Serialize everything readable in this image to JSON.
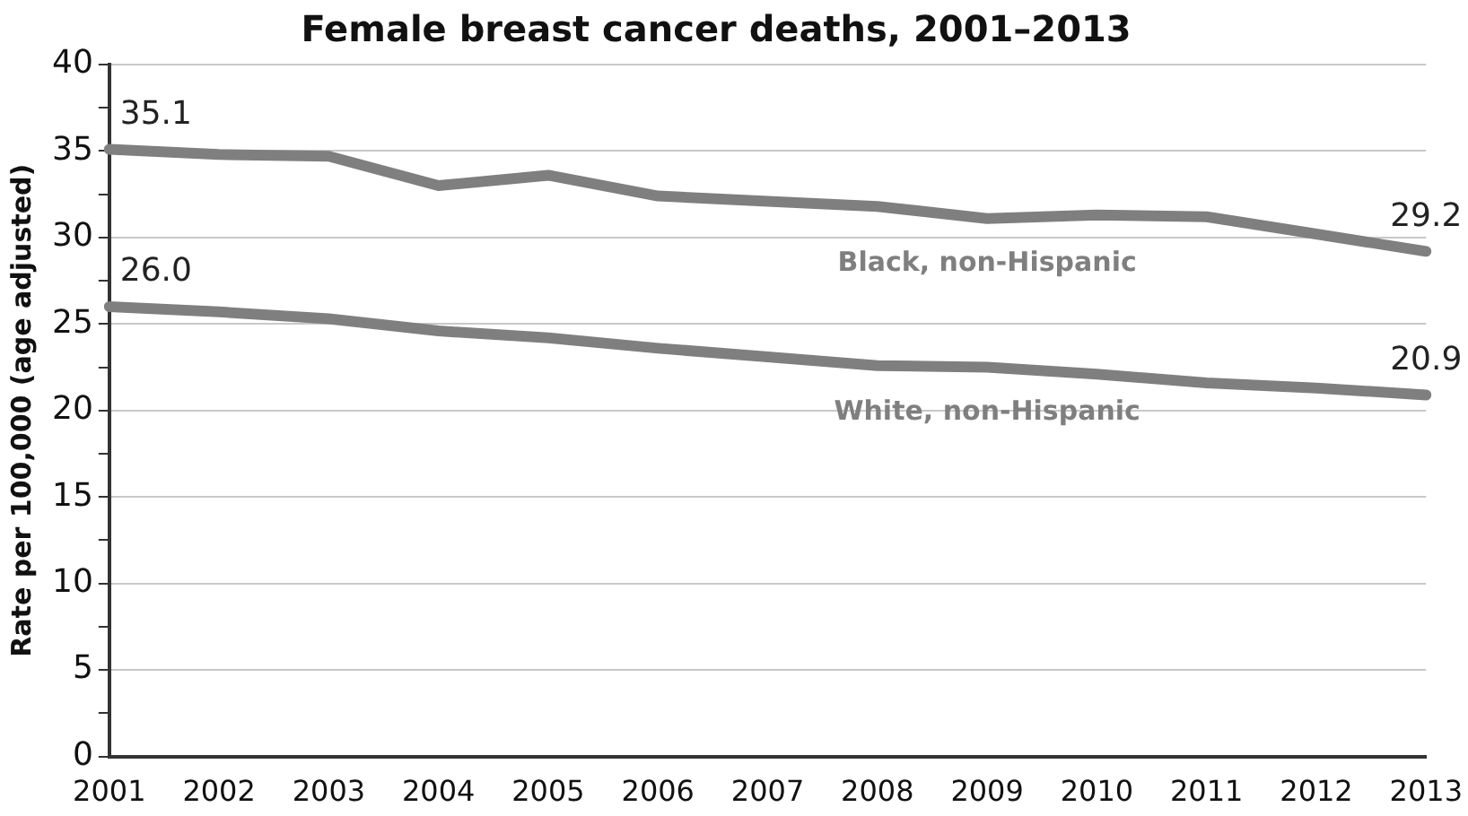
{
  "chart_data": {
    "type": "line",
    "title": "Female breast cancer deaths, 2001–2013",
    "ylabel": "Rate per 100,000 (age adjusted)",
    "categories": [
      "2001",
      "2002",
      "2003",
      "2004",
      "2005",
      "2006",
      "2007",
      "2008",
      "2009",
      "2010",
      "2011",
      "2012",
      "2013"
    ],
    "series": [
      {
        "name": "Black, non-Hispanic",
        "color": "#7f7f7f",
        "values": [
          35.1,
          34.8,
          34.7,
          33.0,
          33.6,
          32.4,
          32.1,
          31.8,
          31.1,
          31.3,
          31.2,
          30.2,
          29.2
        ],
        "value_labels": [
          "35.1",
          null,
          null,
          null,
          null,
          null,
          null,
          null,
          null,
          null,
          null,
          null,
          "29.2"
        ]
      },
      {
        "name": "White, non-Hispanic",
        "color": "#7f7f7f",
        "values": [
          26.0,
          25.7,
          25.3,
          24.6,
          24.2,
          23.6,
          23.1,
          22.6,
          22.5,
          22.1,
          21.6,
          21.3,
          20.9
        ],
        "value_labels": [
          "26.0",
          null,
          null,
          null,
          null,
          null,
          null,
          null,
          null,
          null,
          null,
          null,
          "20.9"
        ]
      }
    ],
    "ylim": [
      0,
      40
    ],
    "yticks": [
      0,
      {
        "value": 2.5,
        "label": null
      },
      5,
      {
        "value": 7.5,
        "label": null
      },
      10,
      {
        "value": 12.5,
        "label": null
      },
      15,
      {
        "value": 17.5,
        "label": null
      },
      20,
      {
        "value": 22.5,
        "label": null
      },
      25,
      {
        "value": 27.5,
        "label": null
      },
      30,
      {
        "value": 32.5,
        "label": null
      },
      35,
      {
        "value": 37.5,
        "label": null
      },
      40
    ],
    "grid": "y",
    "legend": false,
    "marker": "none",
    "line_style": "solid"
  }
}
